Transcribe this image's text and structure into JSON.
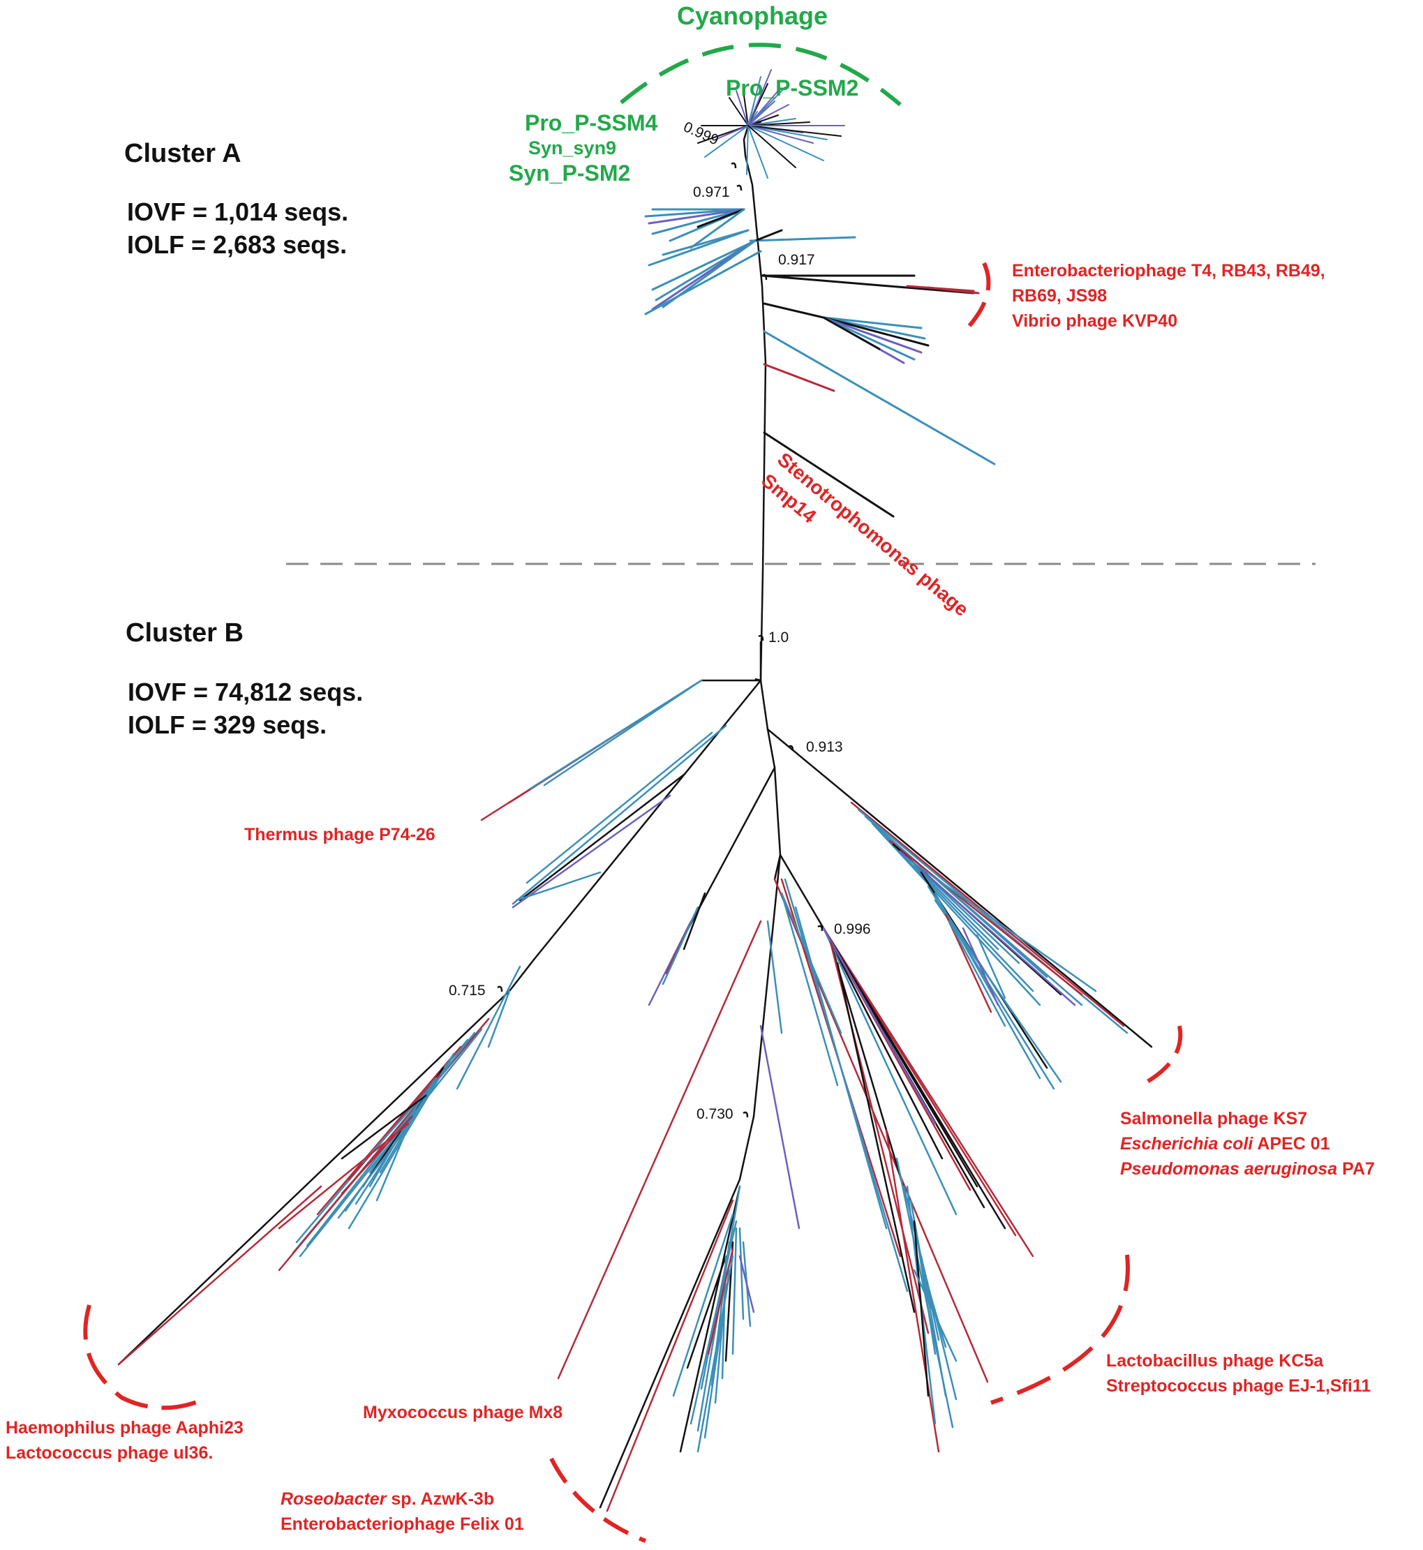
{
  "colors": {
    "cyanophage": "#22a84a",
    "reference_phage": "#e02424",
    "branch_black": "#111111",
    "branch_blue": "#3b8fb8",
    "branch_red": "#b52a3a",
    "branch_purple": "#6b5fbf",
    "divider": "#8a8a8a"
  },
  "cyanophage": {
    "title": "Cyanophage",
    "pro_ssm2": "Pro_P-SSM2",
    "pro_ssm4": "Pro_P-SSM4",
    "syn_syn9": "Syn_syn9",
    "syn_psm2": "Syn_P-SM2"
  },
  "cluster_a": {
    "title": "Cluster A",
    "iovf": "IOVF = 1,014 seqs.",
    "iolf": "IOLF = 2,683 seqs."
  },
  "cluster_b": {
    "title": "Cluster B",
    "iovf": "IOVF = 74,812 seqs.",
    "iolf": "IOLF = 329 seqs."
  },
  "bootstrap": {
    "b0999": "0.999",
    "b0971": "0.971",
    "b0917": "0.917",
    "b10": "1.0",
    "b0913": "0.913",
    "b0996": "0.996",
    "b0715": "0.715",
    "b0730": "0.730"
  },
  "refs": {
    "t4_line1": "Enterobacteriophage T4, RB43, RB49,",
    "t4_line2": "RB69, JS98",
    "t4_line3": "Vibrio phage KVP40",
    "steno_line1": "Stenotrophomonas phage",
    "steno_line2": "Smp14",
    "thermus": "Thermus phage P74-26",
    "salmonella": "Salmonella phage KS7",
    "ecoli_it": "Escherichia coli",
    "ecoli_rest": " APEC 01",
    "pseudo_it": "Pseudomonas aeruginosa",
    "pseudo_rest": " PA7",
    "lacto_line1": "Lactobacillus phage KC5a",
    "lacto_line2": "Streptococcus phage EJ-1,Sfi11",
    "haemo_line1": "Haemophilus phage Aaphi23",
    "haemo_line2": "Lactococcus phage  ul36.",
    "myxo": "Myxococcus phage Mx8",
    "roseo_it": "Roseobacter",
    "roseo_rest": " sp. AzwK-3b",
    "felix": "Enterobacteriophage Felix 01"
  }
}
